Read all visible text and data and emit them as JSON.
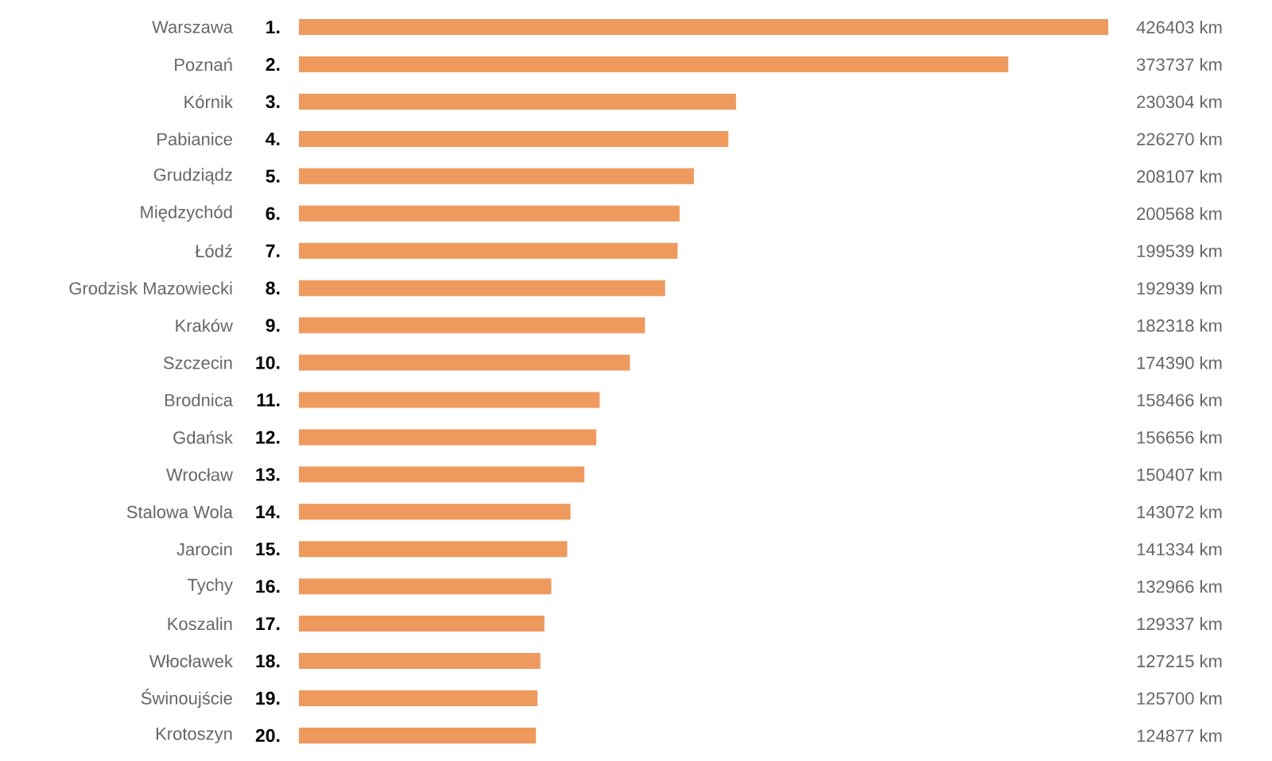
{
  "chart_data": {
    "type": "bar",
    "orientation": "horizontal",
    "categories": [
      "Warszawa",
      "Poznań",
      "Kórnik",
      "Pabianice",
      "Grudziądz",
      "Międzychód",
      "Łódź",
      "Grodzisk Mazowiecki",
      "Kraków",
      "Szczecin",
      "Brodnica",
      "Gdańsk",
      "Wrocław",
      "Stalowa Wola",
      "Jarocin",
      "Tychy",
      "Koszalin",
      "Włocławek",
      "Świnoujście",
      "Krotoszyn"
    ],
    "values": [
      426403,
      373737,
      230304,
      226270,
      208107,
      200568,
      199539,
      192939,
      182318,
      174390,
      158466,
      156656,
      150407,
      143072,
      141334,
      132966,
      129337,
      127215,
      125700,
      124877
    ],
    "value_labels": [
      "426403 km",
      "373737 km",
      "230304 km",
      "226270 km",
      "208107 km",
      "200568 km",
      "199539 km",
      "192939 km",
      "182318 km",
      "174390 km",
      "158466 km",
      "156656 km",
      "150407 km",
      "143072 km",
      "141334 km",
      "132966 km",
      "129337 km",
      "127215 km",
      "125700 km",
      "124877 km"
    ],
    "color": "#ee9a5e",
    "annotations": [
      "1.",
      "2.",
      "3.",
      "4.",
      "5.",
      "6.",
      "7.",
      "8.",
      "9.",
      "10.",
      "11.",
      "12.",
      "13.",
      "14.",
      "15.",
      "16.",
      "17.",
      "18.",
      "19.",
      "20."
    ]
  }
}
